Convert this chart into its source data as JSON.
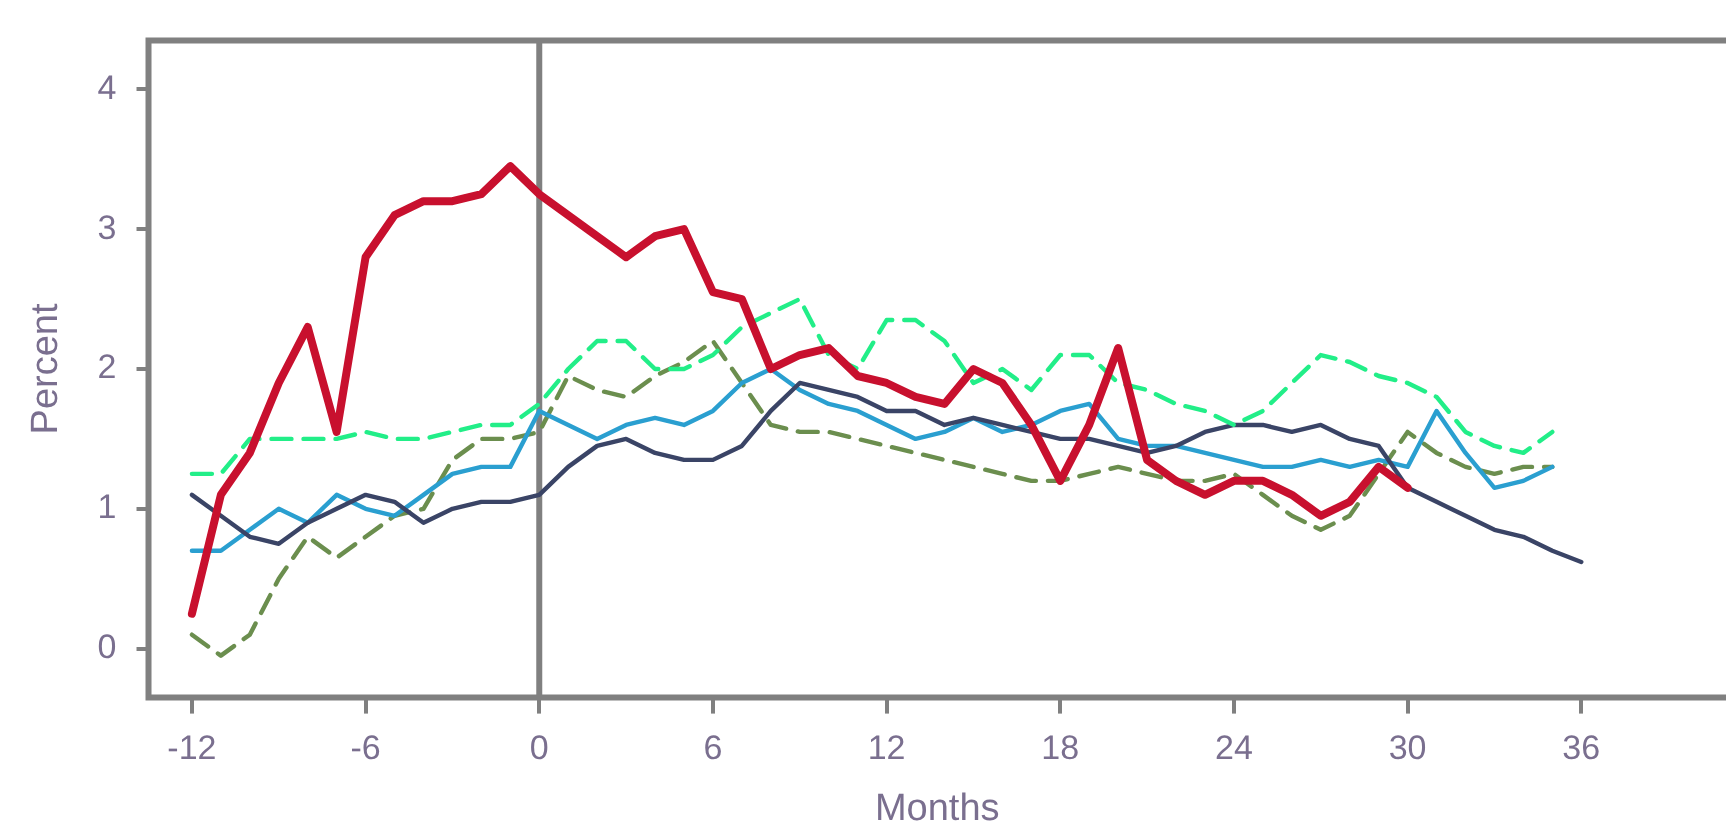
{
  "chart_data": {
    "type": "line",
    "xlabel": "Months",
    "ylabel": "Percent",
    "x": [
      -12,
      -11,
      -10,
      -9,
      -8,
      -7,
      -6,
      -5,
      -4,
      -3,
      -2,
      -1,
      0,
      1,
      2,
      3,
      4,
      5,
      6,
      7,
      8,
      9,
      10,
      11,
      12,
      13,
      14,
      15,
      16,
      17,
      18,
      19,
      20,
      21,
      22,
      23,
      24,
      25,
      26,
      27,
      28,
      29,
      30,
      31,
      32,
      33,
      34,
      35,
      36
    ],
    "xlim": [
      -13.5,
      41
    ],
    "xticks": [
      -12,
      -6,
      0,
      6,
      12,
      18,
      24,
      30,
      36
    ],
    "ylim": [
      -0.35,
      4.35
    ],
    "yticks": [
      0,
      1,
      2,
      3,
      4
    ],
    "grid": false,
    "legend": false,
    "marker": "none",
    "ref_lines": [
      {
        "axis": "x",
        "value": 0,
        "color": "#808080"
      }
    ],
    "series": [
      {
        "color": "#c8102e",
        "line_style": "solid",
        "values": [
          0.25,
          1.1,
          1.4,
          1.9,
          2.3,
          1.55,
          2.8,
          3.1,
          3.2,
          3.2,
          3.25,
          3.45,
          3.25,
          3.1,
          2.95,
          2.8,
          2.95,
          3.0,
          2.55,
          2.5,
          2.0,
          2.1,
          2.15,
          1.95,
          1.9,
          1.8,
          1.75,
          2.0,
          1.9,
          1.6,
          1.2,
          1.6,
          2.15,
          1.35,
          1.2,
          1.1,
          1.2,
          1.2,
          1.1,
          0.95,
          1.05,
          1.3,
          1.15,
          null,
          null,
          null,
          null,
          null,
          null
        ]
      },
      {
        "color": "#22ee88",
        "line_style": "dashed",
        "values": [
          1.25,
          1.25,
          1.5,
          1.5,
          1.5,
          1.5,
          1.55,
          1.5,
          1.5,
          1.55,
          1.6,
          1.6,
          1.75,
          2.0,
          2.2,
          2.2,
          2.0,
          2.0,
          2.1,
          2.3,
          2.4,
          2.5,
          2.1,
          2.0,
          2.35,
          2.35,
          2.2,
          1.9,
          2.0,
          1.85,
          2.1,
          2.1,
          1.9,
          1.85,
          1.75,
          1.7,
          1.6,
          1.7,
          1.9,
          2.1,
          2.05,
          1.95,
          1.9,
          1.8,
          1.55,
          1.45,
          1.4,
          1.55,
          null
        ]
      },
      {
        "color": "#3a4466",
        "line_style": "solid",
        "values": [
          1.1,
          0.95,
          0.8,
          0.75,
          0.9,
          1.0,
          1.1,
          1.05,
          0.9,
          1.0,
          1.05,
          1.05,
          1.1,
          1.3,
          1.45,
          1.5,
          1.4,
          1.35,
          1.35,
          1.45,
          1.7,
          1.9,
          1.85,
          1.8,
          1.7,
          1.7,
          1.6,
          1.65,
          1.6,
          1.55,
          1.5,
          1.5,
          1.45,
          1.4,
          1.45,
          1.55,
          1.6,
          1.6,
          1.55,
          1.6,
          1.5,
          1.45,
          1.15,
          1.05,
          0.95,
          0.85,
          0.8,
          0.7,
          0.62
        ]
      },
      {
        "color": "#2a9fd0",
        "line_style": "solid",
        "values": [
          0.7,
          0.7,
          0.85,
          1.0,
          0.9,
          1.1,
          1.0,
          0.95,
          1.1,
          1.25,
          1.3,
          1.3,
          1.7,
          1.6,
          1.5,
          1.6,
          1.65,
          1.6,
          1.7,
          1.9,
          2.0,
          1.85,
          1.75,
          1.7,
          1.6,
          1.5,
          1.55,
          1.65,
          1.55,
          1.6,
          1.7,
          1.75,
          1.5,
          1.45,
          1.45,
          1.4,
          1.35,
          1.3,
          1.3,
          1.35,
          1.3,
          1.35,
          1.3,
          1.7,
          1.4,
          1.15,
          1.2,
          1.3,
          null
        ]
      },
      {
        "color": "#6b8e4e",
        "line_style": "dashed",
        "values": [
          0.1,
          -0.05,
          0.1,
          0.5,
          0.8,
          0.65,
          0.8,
          0.95,
          1.0,
          1.35,
          1.5,
          1.5,
          1.55,
          1.95,
          1.85,
          1.8,
          1.95,
          2.05,
          2.2,
          1.9,
          1.6,
          1.55,
          1.55,
          1.5,
          1.45,
          1.4,
          1.35,
          1.3,
          1.25,
          1.2,
          1.2,
          1.25,
          1.3,
          1.25,
          1.2,
          1.2,
          1.25,
          1.1,
          0.95,
          0.85,
          0.95,
          1.25,
          1.55,
          1.4,
          1.3,
          1.25,
          1.3,
          1.3,
          null
        ]
      }
    ]
  }
}
